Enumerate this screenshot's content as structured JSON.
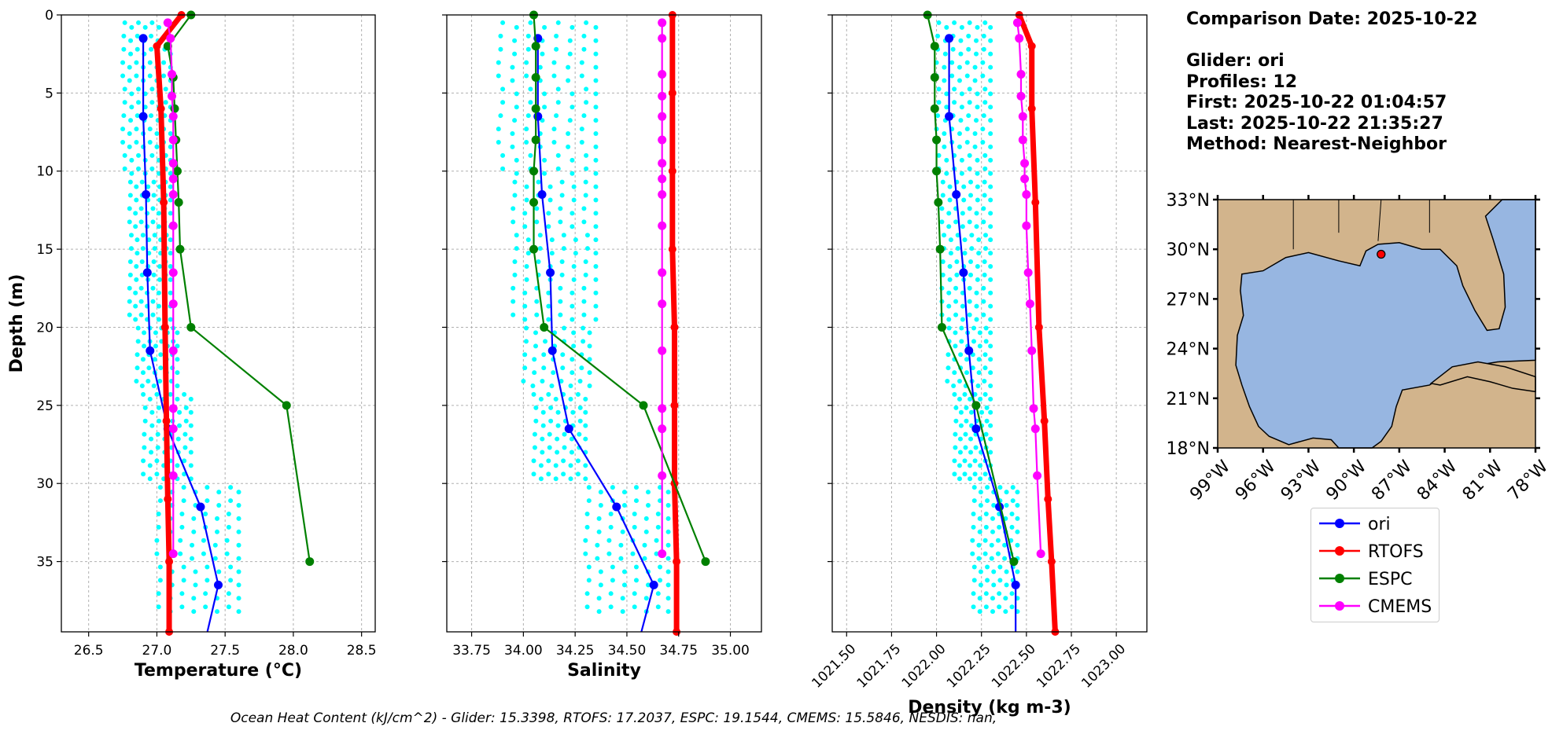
{
  "info": {
    "comparison_date": "Comparison Date: 2025-10-22",
    "glider": "Glider: ori",
    "profiles": "Profiles: 12",
    "first": "First: 2025-10-22 01:04:57",
    "last": "Last: 2025-10-22 21:35:27",
    "method": "Method: Nearest-Neighbor"
  },
  "caption": "Ocean Heat Content (kJ/cm^2) - Glider: 15.3398,  RTOFS: 17.2037,  ESPC: 19.1544,  CMEMS: 15.5846,  NESDIS: nan,",
  "colors": {
    "ori": "#0000ff",
    "RTOFS": "#ff0000",
    "ESPC": "#008000",
    "CMEMS": "#ff00ff",
    "scatter": "#00ffff",
    "land": "#d2b48c",
    "ocean": "#97b6e1"
  },
  "legend": [
    {
      "name": "ori",
      "color": "#0000ff"
    },
    {
      "name": "RTOFS",
      "color": "#ff0000"
    },
    {
      "name": "ESPC",
      "color": "#008000"
    },
    {
      "name": "CMEMS",
      "color": "#ff00ff"
    }
  ],
  "chart_data": [
    {
      "type": "line",
      "xlabel": "Temperature (°C)",
      "ylabel": "Depth (m)",
      "xlim": [
        26.3,
        28.6
      ],
      "ylim": [
        39.5,
        0
      ],
      "xticks": [
        "26.5",
        "27.0",
        "27.5",
        "28.0",
        "28.5"
      ],
      "yticks": [
        "0",
        "5",
        "10",
        "15",
        "20",
        "25",
        "30",
        "35"
      ],
      "grid": true,
      "series": [
        {
          "name": "ori",
          "x": [
            26.9,
            26.9,
            26.92,
            26.93,
            26.95,
            27.08,
            27.32,
            27.45,
            27.37
          ],
          "y": [
            1.5,
            6.5,
            11.5,
            16.5,
            21.5,
            26.5,
            31.5,
            36.5,
            39.5
          ]
        },
        {
          "name": "RTOFS",
          "x": [
            27.18,
            27.0,
            27.03,
            27.05,
            27.06,
            27.07,
            27.08,
            27.09,
            27.09
          ],
          "y": [
            0,
            2,
            6,
            12,
            20,
            26,
            31,
            35,
            39.5
          ]
        },
        {
          "name": "ESPC",
          "x": [
            27.25,
            27.08,
            27.12,
            27.13,
            27.14,
            27.15,
            27.16,
            27.17,
            27.25,
            27.95,
            28.12
          ],
          "y": [
            0,
            2,
            4,
            6,
            8,
            10,
            12,
            15,
            20,
            25,
            35
          ]
        },
        {
          "name": "CMEMS",
          "x": [
            27.08,
            27.1,
            27.11,
            27.11,
            27.12,
            27.12,
            27.12,
            27.12,
            27.12,
            27.12,
            27.12,
            27.12,
            27.12,
            27.12,
            27.12,
            27.12,
            27.12
          ],
          "y": [
            0.5,
            1.5,
            3.8,
            5.2,
            6.5,
            8,
            9.5,
            10.5,
            11.5,
            13.5,
            16.5,
            18.5,
            21.5,
            25.2,
            26.5,
            29.5,
            34.5
          ]
        }
      ],
      "scatter": {
        "xmin": [
          26.75,
          26.8,
          26.85,
          26.9,
          27.0,
          27.3
        ],
        "xmax": [
          27.1,
          27.1,
          27.15,
          27.25,
          27.6,
          27.75
        ],
        "depth_breaks": [
          0,
          10,
          20,
          24,
          30,
          38
        ]
      }
    },
    {
      "type": "line",
      "xlabel": "Salinity",
      "xlim": [
        33.63,
        35.15
      ],
      "ylim": [
        39.5,
        0
      ],
      "xticks": [
        "33.75",
        "34.00",
        "34.25",
        "34.50",
        "34.75",
        "35.00"
      ],
      "yticks": [],
      "grid": true,
      "series": [
        {
          "name": "ori",
          "x": [
            34.07,
            34.07,
            34.09,
            34.13,
            34.14,
            34.22,
            34.45,
            34.63,
            34.57
          ],
          "y": [
            1.5,
            6.5,
            11.5,
            16.5,
            21.5,
            26.5,
            31.5,
            36.5,
            39.5
          ]
        },
        {
          "name": "RTOFS",
          "x": [
            34.72,
            34.72,
            34.72,
            34.72,
            34.73,
            34.73,
            34.73,
            34.74,
            34.74
          ],
          "y": [
            0,
            5,
            10,
            15,
            20,
            25,
            30,
            35,
            39.5
          ]
        },
        {
          "name": "ESPC",
          "x": [
            34.05,
            34.06,
            34.06,
            34.06,
            34.06,
            34.05,
            34.05,
            34.05,
            34.1,
            34.58,
            34.88
          ],
          "y": [
            0,
            2,
            4,
            6,
            8,
            10,
            12,
            15,
            20,
            25,
            35
          ]
        },
        {
          "name": "CMEMS",
          "x": [
            34.67,
            34.67,
            34.67,
            34.67,
            34.67,
            34.67,
            34.67,
            34.67,
            34.67,
            34.67,
            34.67,
            34.67,
            34.67,
            34.67,
            34.67,
            34.67,
            34.67
          ],
          "y": [
            0.5,
            1.5,
            3.8,
            5.2,
            6.5,
            8,
            9.5,
            10.5,
            11.5,
            13.5,
            16.5,
            18.5,
            21.5,
            25.2,
            26.5,
            29.5,
            34.5
          ]
        }
      ],
      "scatter": {
        "xmin": [
          33.88,
          33.95,
          34.0,
          34.05,
          34.3,
          34.55
        ],
        "xmax": [
          34.35,
          34.35,
          34.32,
          34.3,
          34.7,
          34.8
        ],
        "depth_breaks": [
          0,
          10,
          20,
          24,
          30,
          38
        ]
      }
    },
    {
      "type": "line",
      "xlabel": "Density (kg m-3)",
      "xlim": [
        1021.42,
        1023.17
      ],
      "ylim": [
        39.5,
        0
      ],
      "xticks": [
        "1021.50",
        "1021.75",
        "1022.00",
        "1022.25",
        "1022.50",
        "1022.75",
        "1023.00"
      ],
      "yticks": [],
      "grid": true,
      "series": [
        {
          "name": "ori",
          "x": [
            1022.07,
            1022.07,
            1022.11,
            1022.15,
            1022.18,
            1022.22,
            1022.35,
            1022.44,
            1022.44
          ],
          "y": [
            1.5,
            6.5,
            11.5,
            16.5,
            21.5,
            26.5,
            31.5,
            36.5,
            39.5
          ]
        },
        {
          "name": "RTOFS",
          "x": [
            1022.46,
            1022.53,
            1022.53,
            1022.55,
            1022.57,
            1022.6,
            1022.62,
            1022.64,
            1022.66
          ],
          "y": [
            0,
            2,
            6,
            12,
            20,
            26,
            31,
            35,
            39.5
          ]
        },
        {
          "name": "ESPC",
          "x": [
            1021.95,
            1021.99,
            1021.99,
            1021.99,
            1022.0,
            1022.0,
            1022.01,
            1022.02,
            1022.03,
            1022.22,
            1022.43
          ],
          "y": [
            0,
            2,
            4,
            6,
            8,
            10,
            12,
            15,
            20,
            25,
            35
          ]
        },
        {
          "name": "CMEMS",
          "x": [
            1022.45,
            1022.46,
            1022.47,
            1022.47,
            1022.48,
            1022.48,
            1022.49,
            1022.49,
            1022.5,
            1022.5,
            1022.51,
            1022.52,
            1022.53,
            1022.54,
            1022.55,
            1022.56,
            1022.58
          ],
          "y": [
            0.5,
            1.5,
            3.8,
            5.2,
            6.5,
            8,
            9.5,
            10.5,
            11.5,
            13.5,
            16.5,
            18.5,
            21.5,
            25.2,
            26.5,
            29.5,
            34.5
          ]
        }
      ],
      "scatter": {
        "xmin": [
          1022.0,
          1022.03,
          1022.06,
          1022.1,
          1022.2,
          1022.35
        ],
        "xmax": [
          1022.3,
          1022.3,
          1022.3,
          1022.3,
          1022.45,
          1022.55
        ],
        "depth_breaks": [
          0,
          10,
          20,
          24,
          30,
          38
        ]
      }
    },
    {
      "type": "map",
      "lon_ticks": [
        "99°W",
        "96°W",
        "93°W",
        "90°W",
        "87°W",
        "84°W",
        "81°W",
        "78°W"
      ],
      "lat_ticks": [
        "33°N",
        "30°N",
        "27°N",
        "24°N",
        "21°N",
        "18°N"
      ],
      "lon_range": [
        -99,
        -78
      ],
      "lat_range": [
        18,
        33
      ],
      "glider_position": [
        -88.2,
        29.7
      ]
    }
  ]
}
